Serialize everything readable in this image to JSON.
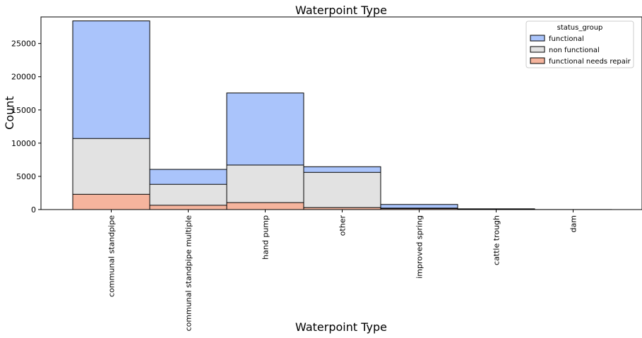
{
  "chart_data": {
    "type": "bar",
    "stacked": true,
    "title": "Waterpoint Type",
    "xlabel": "Waterpoint Type",
    "ylabel": "Count",
    "ylim": [
      0,
      29000
    ],
    "yticks": [
      0,
      5000,
      10000,
      15000,
      20000,
      25000
    ],
    "grid": false,
    "legend": {
      "title": "status_group",
      "placement": "top-right"
    },
    "categories": [
      "communal standpipe",
      "communal standpipe multiple",
      "hand pump",
      "other",
      "improved spring",
      "cattle trough",
      "dam"
    ],
    "series": [
      {
        "name": "functional",
        "color": "#aac4fb",
        "values": [
          17700,
          2250,
          10850,
          850,
          550,
          80,
          5
        ]
      },
      {
        "name": "non functional",
        "color": "#e2e2e2",
        "values": [
          8400,
          3150,
          5650,
          5300,
          70,
          20,
          2
        ]
      },
      {
        "name": "functional needs repair",
        "color": "#f5b49d",
        "values": [
          2300,
          650,
          1050,
          300,
          150,
          15,
          0
        ]
      }
    ]
  }
}
